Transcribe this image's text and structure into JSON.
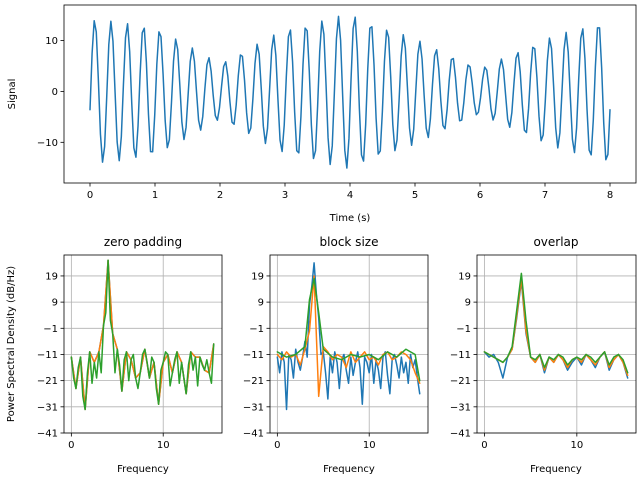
{
  "colors": {
    "c0": "#1f77b4",
    "c1": "#ff7f0e",
    "c2": "#2ca02c"
  },
  "chart_data": [
    {
      "type": "line",
      "title": "",
      "xlabel": "Time (s)",
      "ylabel": "Signal",
      "xlim": [
        -0.4,
        8.4
      ],
      "ylim": [
        -18,
        17
      ],
      "xticks": [
        0,
        1,
        2,
        3,
        4,
        5,
        6,
        7,
        8
      ],
      "xtick_labels": [
        "0",
        "1",
        "2",
        "3",
        "4",
        "5",
        "6",
        "7",
        "8"
      ],
      "yticks": [
        -10,
        0,
        10
      ],
      "ytick_labels": [
        "−10",
        "0",
        "10"
      ],
      "grid": false,
      "signal": {
        "t_start": 0,
        "t_end": 8,
        "n_points": 250,
        "frequency_hz": 4,
        "amplitude_envelope": [
          [
            0,
            14
          ],
          [
            1,
            12.5
          ],
          [
            2,
            5
          ],
          [
            3,
            12
          ],
          [
            4,
            15
          ],
          [
            5,
            10
          ],
          [
            6,
            4
          ],
          [
            7,
            10
          ],
          [
            8,
            14
          ]
        ]
      },
      "series": [
        {
          "color": "#1f77b4"
        }
      ]
    },
    {
      "type": "line",
      "title": "zero padding",
      "xlabel": "Frequency",
      "ylabel": "Power Spectral Density (dB/Hz)",
      "xlim": [
        -0.8,
        16.4
      ],
      "ylim": [
        -41,
        27
      ],
      "xticks": [
        0,
        10
      ],
      "xtick_labels": [
        "0",
        "10"
      ],
      "yticks": [
        -41,
        -31,
        -21,
        -11,
        -1,
        9,
        19
      ],
      "ytick_labels": [
        "−41",
        "−31",
        "−21",
        "−11",
        "−1",
        "9",
        "19"
      ],
      "grid": true,
      "series": [
        {
          "color": "#1f77b4",
          "x": [
            0,
            0.5,
            1,
            1.5,
            2,
            2.5,
            3,
            3.5,
            4,
            4.5,
            5,
            5.5,
            6,
            6.5,
            7,
            7.5,
            8,
            8.5,
            9,
            9.5,
            10,
            10.5,
            11,
            11.5,
            12,
            12.5,
            13,
            13.5,
            14,
            14.5,
            15,
            15.5
          ],
          "y": [
            -12,
            -24,
            -12,
            -32,
            -10,
            -14,
            -10,
            0,
            25,
            -3,
            -9,
            -25,
            -10,
            -13,
            -20,
            -18,
            -9,
            -20,
            -14,
            -30,
            -14,
            -11,
            -18,
            -10,
            -14,
            -26,
            -10,
            -12,
            -12,
            -17,
            -18,
            -7
          ]
        },
        {
          "color": "#ff7f0e",
          "x": [
            0,
            0.5,
            1,
            1.5,
            2,
            2.5,
            3,
            3.5,
            4,
            4.5,
            5,
            5.5,
            6,
            6.5,
            7,
            7.5,
            8,
            8.5,
            9,
            9.5,
            10,
            10.5,
            11,
            11.5,
            12,
            12.5,
            13,
            13.5,
            14,
            14.5,
            15,
            15.5
          ],
          "y": [
            -12,
            -24,
            -12,
            -32,
            -10,
            -14,
            -10,
            0,
            25,
            -3,
            -9,
            -25,
            -10,
            -13,
            -20,
            -18,
            -9,
            -20,
            -14,
            -30,
            -14,
            -11,
            -18,
            -10,
            -14,
            -26,
            -10,
            -12,
            -12,
            -17,
            -18,
            -7
          ]
        },
        {
          "color": "#2ca02c",
          "x": [
            0,
            0.25,
            0.5,
            0.75,
            1,
            1.25,
            1.5,
            1.75,
            2,
            2.25,
            2.5,
            2.75,
            3,
            3.25,
            3.5,
            3.75,
            4,
            4.25,
            4.5,
            4.75,
            5,
            5.25,
            5.5,
            5.75,
            6,
            6.25,
            6.5,
            6.75,
            7,
            7.25,
            7.5,
            7.75,
            8,
            8.25,
            8.5,
            8.75,
            9,
            9.25,
            9.5,
            9.75,
            10,
            10.25,
            10.5,
            10.75,
            11,
            11.25,
            11.5,
            11.75,
            12,
            12.25,
            12.5,
            12.75,
            13,
            13.25,
            13.5,
            13.75,
            14,
            14.25,
            14.5,
            14.75,
            15,
            15.25,
            15.5
          ],
          "y": [
            -12,
            -20,
            -24,
            -16,
            -12,
            -27,
            -32,
            -18,
            -10,
            -22,
            -14,
            -20,
            -10,
            -18,
            0,
            5,
            25,
            2,
            -3,
            -18,
            -9,
            -15,
            -25,
            -13,
            -10,
            -21,
            -13,
            -11,
            -20,
            -24,
            -18,
            -11,
            -9,
            -14,
            -20,
            -12,
            -14,
            -24,
            -30,
            -17,
            -14,
            -10,
            -11,
            -23,
            -18,
            -13,
            -10,
            -22,
            -14,
            -20,
            -26,
            -15,
            -10,
            -17,
            -12,
            -23,
            -12,
            -15,
            -17,
            -13,
            -18,
            -22,
            -7
          ]
        }
      ]
    },
    {
      "type": "line",
      "title": "block size",
      "xlabel": "Frequency",
      "ylabel": "",
      "xlim": [
        -0.8,
        16.4
      ],
      "ylim": [
        -41,
        27
      ],
      "xticks": [
        0,
        10
      ],
      "xtick_labels": [
        "0",
        "10"
      ],
      "yticks": [
        -41,
        -31,
        -21,
        -11,
        -1,
        9,
        19
      ],
      "ytick_labels": [
        "−41",
        "−31",
        "−21",
        "−11",
        "−1",
        "9",
        "19"
      ],
      "grid": true,
      "series": [
        {
          "color": "#1f77b4",
          "x": [
            0,
            0.25,
            0.5,
            0.75,
            1,
            1.25,
            1.5,
            1.75,
            2,
            2.25,
            2.5,
            2.75,
            3,
            3.25,
            3.5,
            3.75,
            4,
            4.25,
            4.5,
            4.75,
            5,
            5.25,
            5.5,
            5.75,
            6,
            6.25,
            6.5,
            6.75,
            7,
            7.25,
            7.5,
            7.75,
            8,
            8.25,
            8.5,
            8.75,
            9,
            9.25,
            9.5,
            9.75,
            10,
            10.25,
            10.5,
            10.75,
            11,
            11.25,
            11.5,
            11.75,
            12,
            12.25,
            12.5,
            12.75,
            13,
            13.25,
            13.5,
            13.75,
            14,
            14.25,
            14.5,
            14.75,
            15,
            15.25,
            15.5
          ],
          "y": [
            -12,
            -18,
            -10,
            -14,
            -32,
            -11,
            -13,
            -20,
            -9,
            -14,
            -17,
            -12,
            -6,
            -12,
            8,
            15,
            24,
            12,
            3,
            -11,
            -10,
            -18,
            -28,
            -12,
            -18,
            -10,
            -14,
            -24,
            -13,
            -11,
            -17,
            -22,
            -12,
            -19,
            -14,
            -10,
            -16,
            -30,
            -12,
            -14,
            -18,
            -11,
            -22,
            -13,
            -17,
            -24,
            -12,
            -10,
            -19,
            -26,
            -13,
            -11,
            -15,
            -20,
            -12,
            -18,
            -14,
            -22,
            -11,
            -16,
            -13,
            -20,
            -26
          ]
        },
        {
          "color": "#ff7f0e",
          "x": [
            0,
            0.5,
            1,
            1.5,
            2,
            2.5,
            3,
            3.5,
            4,
            4.5,
            5,
            5.5,
            6,
            6.5,
            7,
            7.5,
            8,
            8.5,
            9,
            9.5,
            10,
            10.5,
            11,
            11.5,
            12,
            12.5,
            13,
            13.5,
            14,
            14.5,
            15,
            15.5
          ],
          "y": [
            -11,
            -13,
            -10,
            -12,
            -11,
            -15,
            -9,
            -2,
            19,
            -27,
            -8,
            -10,
            -13,
            -11,
            -12,
            -16,
            -10,
            -14,
            -12,
            -10,
            -13,
            -12,
            -15,
            -11,
            -10,
            -13,
            -12,
            -10,
            -11,
            -13,
            -18,
            -22
          ]
        },
        {
          "color": "#2ca02c",
          "x": [
            0,
            1,
            2,
            3,
            3.5,
            4,
            4.5,
            5,
            6,
            7,
            8,
            9,
            10,
            11,
            12,
            13,
            14,
            15,
            15.5
          ],
          "y": [
            -10,
            -12,
            -11,
            -8,
            10,
            18,
            5,
            -9,
            -12,
            -13,
            -11,
            -12,
            -11,
            -13,
            -10,
            -12,
            -9,
            -11,
            -21
          ]
        }
      ]
    },
    {
      "type": "line",
      "title": "overlap",
      "xlabel": "Frequency",
      "ylabel": "",
      "xlim": [
        -0.8,
        16.4
      ],
      "ylim": [
        -41,
        27
      ],
      "xticks": [
        0,
        10
      ],
      "xtick_labels": [
        "0",
        "10"
      ],
      "yticks": [
        -41,
        -31,
        -21,
        -11,
        -1,
        9,
        19
      ],
      "ytick_labels": [
        "−41",
        "−31",
        "−21",
        "−11",
        "−1",
        "9",
        "19"
      ],
      "grid": true,
      "series": [
        {
          "color": "#1f77b4",
          "x": [
            0,
            0.5,
            1,
            1.5,
            2,
            2.5,
            3,
            3.5,
            4,
            4.5,
            5,
            5.5,
            6,
            6.5,
            7,
            7.5,
            8,
            8.5,
            9,
            9.5,
            10,
            10.5,
            11,
            11.5,
            12,
            12.5,
            13,
            13.5,
            14,
            14.5,
            15,
            15.5
          ],
          "y": [
            -10,
            -12,
            -11,
            -14,
            -20,
            -12,
            -9,
            3,
            17,
            -3,
            -12,
            -14,
            -11,
            -18,
            -12,
            -14,
            -11,
            -13,
            -17,
            -14,
            -12,
            -15,
            -11,
            -13,
            -16,
            -12,
            -10,
            -17,
            -13,
            -11,
            -14,
            -20
          ]
        },
        {
          "color": "#ff7f0e",
          "x": [
            0,
            0.5,
            1,
            1.5,
            2,
            2.5,
            3,
            3.5,
            4,
            4.5,
            5,
            5.5,
            6,
            6.5,
            7,
            7.5,
            8,
            8.5,
            9,
            9.5,
            10,
            10.5,
            11,
            11.5,
            12,
            12.5,
            13,
            13.5,
            14,
            14.5,
            15,
            15.5
          ],
          "y": [
            -10,
            -11,
            -12,
            -13,
            -14,
            -12,
            -9,
            4,
            18,
            -2,
            -12,
            -14,
            -11,
            -17,
            -12,
            -14,
            -11,
            -13,
            -16,
            -13,
            -12,
            -14,
            -11,
            -13,
            -15,
            -12,
            -10,
            -16,
            -13,
            -11,
            -14,
            -19
          ]
        },
        {
          "color": "#2ca02c",
          "x": [
            0,
            0.5,
            1,
            1.5,
            2,
            2.5,
            3,
            3.5,
            4,
            4.5,
            5,
            5.5,
            6,
            6.5,
            7,
            7.5,
            8,
            8.5,
            9,
            9.5,
            10,
            10.5,
            11,
            11.5,
            12,
            12.5,
            13,
            13.5,
            14,
            14.5,
            15,
            15.5
          ],
          "y": [
            -10,
            -11,
            -12,
            -13,
            -14,
            -12,
            -8,
            6,
            20,
            2,
            -12,
            -13,
            -11,
            -16,
            -12,
            -13,
            -11,
            -12,
            -15,
            -13,
            -12,
            -13,
            -11,
            -12,
            -14,
            -12,
            -10,
            -15,
            -12,
            -11,
            -13,
            -18
          ]
        }
      ]
    }
  ]
}
